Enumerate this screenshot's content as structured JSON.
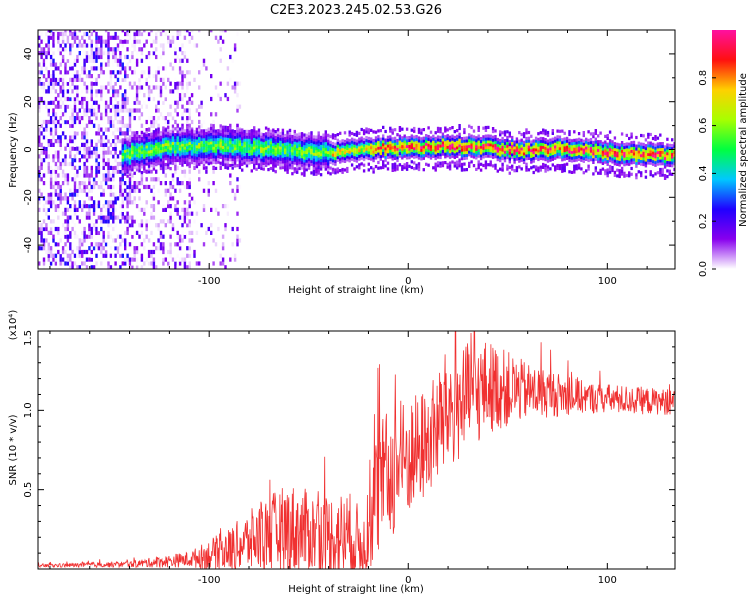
{
  "title": "C2E3.2023.245.02.53.G26",
  "colors": {
    "snr_line": "#f03030",
    "colormap": [
      "#ffffff",
      "#8800ee",
      "#2000ff",
      "#00c8ff",
      "#00ff40",
      "#a8ff00",
      "#ffd000",
      "#ff1010",
      "#ff10a0"
    ]
  },
  "chart_data": [
    {
      "id": "spectrogram",
      "type": "heatmap",
      "xlabel": "Height of straight line (km)",
      "ylabel": "Frequency (Hz)",
      "xlim": [
        -186,
        134
      ],
      "ylim": [
        -50,
        50
      ],
      "xticks": [
        -100,
        0,
        100
      ],
      "yticks": [
        -40,
        -20,
        0,
        20,
        40
      ],
      "colorbar": {
        "label": "Normalized spectral amplitude",
        "range": [
          0,
          1
        ],
        "ticks": [
          "0.0",
          "0.2",
          "0.4",
          "0.6",
          "0.8"
        ],
        "tick_values": [
          0,
          0.2,
          0.4,
          0.6,
          0.8
        ]
      },
      "features": {
        "noise_region_x": [
          -186,
          -85
        ],
        "signal_start_x": -145,
        "signal_center_hz": [
          {
            "x": -145,
            "hz": -3
          },
          {
            "x": -120,
            "hz": 1
          },
          {
            "x": -90,
            "hz": 1
          },
          {
            "x": -60,
            "hz": -1
          },
          {
            "x": -40,
            "hz": -2
          },
          {
            "x": -20,
            "hz": 0
          },
          {
            "x": 0,
            "hz": 0
          },
          {
            "x": 20,
            "hz": 1
          },
          {
            "x": 40,
            "hz": 0
          },
          {
            "x": 60,
            "hz": -1
          },
          {
            "x": 80,
            "hz": 0
          },
          {
            "x": 100,
            "hz": -2
          },
          {
            "x": 134,
            "hz": -3
          }
        ]
      }
    },
    {
      "id": "snr",
      "type": "line",
      "xlabel": "Height of straight line (km)",
      "ylabel": "SNR (10 * v/v)",
      "y_multiplier": "(x10⁴)",
      "xlim": [
        -186,
        134
      ],
      "ylim": [
        0,
        1.5
      ],
      "xticks": [
        -100,
        0,
        100
      ],
      "yticks": [
        0.5,
        1.0,
        1.5
      ],
      "ytick_labels": [
        "0.5",
        "1.0",
        "1.5"
      ],
      "envelope": [
        {
          "x": -186,
          "mean": 0.02,
          "amp": 0.01
        },
        {
          "x": -140,
          "mean": 0.03,
          "amp": 0.02
        },
        {
          "x": -110,
          "mean": 0.06,
          "amp": 0.05
        },
        {
          "x": -90,
          "mean": 0.12,
          "amp": 0.14
        },
        {
          "x": -75,
          "mean": 0.2,
          "amp": 0.22
        },
        {
          "x": -60,
          "mean": 0.25,
          "amp": 0.3
        },
        {
          "x": -45,
          "mean": 0.22,
          "amp": 0.25
        },
        {
          "x": -30,
          "mean": 0.2,
          "amp": 0.3
        },
        {
          "x": -22,
          "mean": 0.15,
          "amp": 0.2
        },
        {
          "x": -15,
          "mean": 0.5,
          "amp": 0.45
        },
        {
          "x": -5,
          "mean": 0.65,
          "amp": 0.4
        },
        {
          "x": 10,
          "mean": 0.8,
          "amp": 0.35
        },
        {
          "x": 20,
          "mean": 1.0,
          "amp": 0.4
        },
        {
          "x": 40,
          "mean": 1.15,
          "amp": 0.3
        },
        {
          "x": 60,
          "mean": 1.12,
          "amp": 0.18
        },
        {
          "x": 90,
          "mean": 1.08,
          "amp": 0.1
        },
        {
          "x": 134,
          "mean": 1.05,
          "amp": 0.08
        }
      ]
    }
  ]
}
